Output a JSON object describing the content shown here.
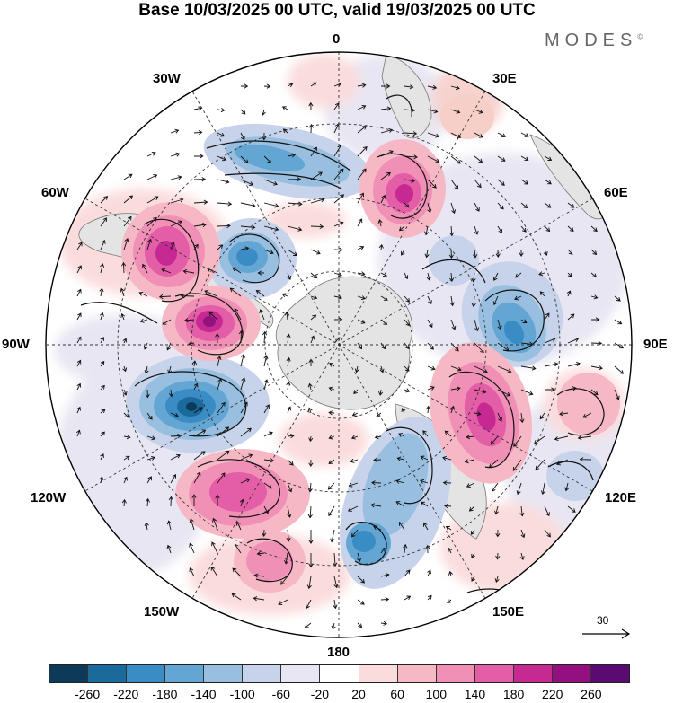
{
  "title": "Base 10/03/2025 00 UTC, valid 19/03/2025 00 UTC",
  "brand": "MODES",
  "brand_mark": "©",
  "longitude_labels": {
    "top": "0",
    "top_right": "30E",
    "right_upper": "60E",
    "right": "90E",
    "right_lower": "120E",
    "bottom_right": "150E",
    "bottom": "180",
    "bottom_left": "150W",
    "left_lower": "120W",
    "left": "90W",
    "left_upper": "60W",
    "top_left": "30W"
  },
  "reference_vector": {
    "label": "30"
  },
  "colorbar": {
    "colors": [
      "#0e3a5a",
      "#1a6a9c",
      "#3a8cc4",
      "#64a6d3",
      "#98bfe0",
      "#c7d3ea",
      "#e8e6f2",
      "#ffffff",
      "#fbdcdc",
      "#f6b8c4",
      "#f190b6",
      "#e35ea6",
      "#c62a92",
      "#921080",
      "#5a0a70"
    ],
    "ticks": [
      "-260",
      "-220",
      "-180",
      "-140",
      "-100",
      "-60",
      "-20",
      "20",
      "60",
      "100",
      "140",
      "180",
      "220",
      "260"
    ]
  },
  "colors": {
    "land": "#e4e4e4",
    "coast": "#777777",
    "grid": "#333333"
  }
}
